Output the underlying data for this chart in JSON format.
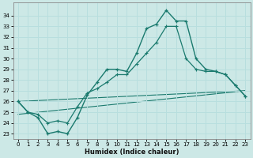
{
  "xlabel": "Humidex (Indice chaleur)",
  "bg_color": "#cce8e6",
  "line_color": "#1a7a6e",
  "grid_color": "#b8dede",
  "xlim": [
    -0.5,
    23.5
  ],
  "ylim": [
    22.5,
    35.2
  ],
  "xticks": [
    0,
    1,
    2,
    3,
    4,
    5,
    6,
    7,
    8,
    9,
    10,
    11,
    12,
    13,
    14,
    15,
    16,
    17,
    18,
    19,
    20,
    21,
    22,
    23
  ],
  "yticks": [
    23,
    24,
    25,
    26,
    27,
    28,
    29,
    30,
    31,
    32,
    33,
    34
  ],
  "main_x": [
    0,
    1,
    2,
    3,
    4,
    5,
    6,
    7,
    8,
    9,
    10,
    11,
    12,
    13,
    14,
    15,
    16,
    17,
    18,
    19,
    20,
    21,
    22,
    23
  ],
  "main_y": [
    26.0,
    25.0,
    24.5,
    23.0,
    23.2,
    23.0,
    24.5,
    26.6,
    27.8,
    29.0,
    29.0,
    28.8,
    30.5,
    32.8,
    33.2,
    34.5,
    33.5,
    33.5,
    30.0,
    29.0,
    28.8,
    28.5,
    27.5,
    26.5
  ],
  "line2_x": [
    0,
    1,
    2,
    3,
    4,
    5,
    6,
    7,
    8,
    9,
    10,
    11,
    12,
    13,
    14,
    15,
    16,
    17,
    18,
    19,
    20,
    21,
    22,
    23
  ],
  "line2_y": [
    26.0,
    25.0,
    24.8,
    24.0,
    24.2,
    24.0,
    25.5,
    26.8,
    27.2,
    27.8,
    28.5,
    28.5,
    29.5,
    30.5,
    31.5,
    33.0,
    33.0,
    30.0,
    29.0,
    28.8,
    28.8,
    28.5,
    27.5,
    26.5
  ],
  "trend1_x": [
    0,
    23
  ],
  "trend1_y": [
    26.0,
    27.0
  ],
  "trend2_x": [
    0,
    23
  ],
  "trend2_y": [
    24.8,
    27.0
  ]
}
